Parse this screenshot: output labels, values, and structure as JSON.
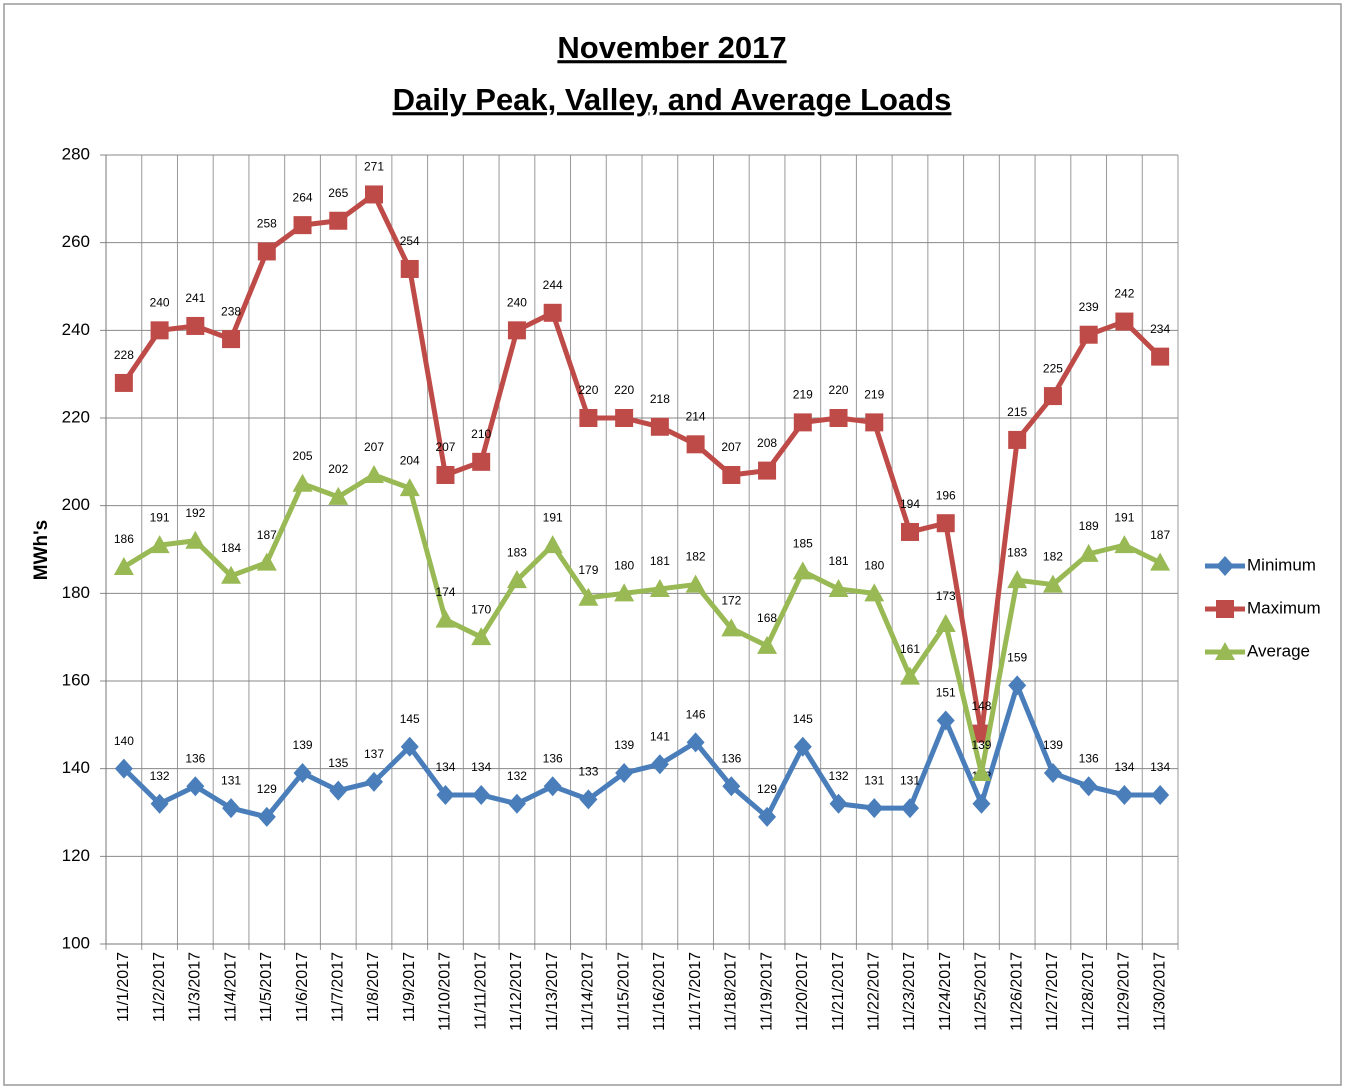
{
  "chart_data": {
    "type": "line",
    "title": [
      "November 2017",
      "Daily Peak, Valley, and Average Loads"
    ],
    "y_label": "MWh's",
    "categories": [
      "11/1/2017",
      "11/2/2017",
      "11/3/2017",
      "11/4/2017",
      "11/5/2017",
      "11/6/2017",
      "11/7/2017",
      "11/8/2017",
      "11/9/2017",
      "11/10/2017",
      "11/11/2017",
      "11/12/2017",
      "11/13/2017",
      "11/14/2017",
      "11/15/2017",
      "11/16/2017",
      "11/17/2017",
      "11/18/2017",
      "11/19/2017",
      "11/20/2017",
      "11/21/2017",
      "11/22/2017",
      "11/23/2017",
      "11/24/2017",
      "11/25/2017",
      "11/26/2017",
      "11/27/2017",
      "11/28/2017",
      "11/29/2017",
      "11/30/2017"
    ],
    "series": [
      {
        "name": "Minimum",
        "color": "#4a7ebb",
        "marker": "diamond",
        "values": [
          140,
          132,
          136,
          131,
          129,
          139,
          135,
          137,
          145,
          134,
          134,
          132,
          136,
          133,
          139,
          141,
          146,
          136,
          129,
          145,
          132,
          131,
          131,
          151,
          132,
          159,
          139,
          136,
          134,
          134
        ]
      },
      {
        "name": "Maximum",
        "color": "#be4b48",
        "marker": "square",
        "values": [
          228,
          240,
          241,
          238,
          258,
          264,
          265,
          271,
          254,
          207,
          210,
          240,
          244,
          220,
          220,
          218,
          214,
          207,
          208,
          219,
          220,
          219,
          194,
          196,
          148,
          215,
          225,
          239,
          242,
          234
        ]
      },
      {
        "name": "Average",
        "color": "#98b954",
        "marker": "triangle",
        "values": [
          186,
          191,
          192,
          184,
          187,
          205,
          202,
          207,
          204,
          174,
          170,
          183,
          191,
          179,
          180,
          181,
          182,
          172,
          168,
          185,
          181,
          180,
          161,
          173,
          139,
          183,
          182,
          189,
          191,
          187
        ]
      }
    ],
    "ylim": [
      100,
      280
    ],
    "yticks": [
      100,
      120,
      140,
      160,
      180,
      200,
      220,
      240,
      260,
      280
    ],
    "grid": true,
    "legend": "right"
  }
}
